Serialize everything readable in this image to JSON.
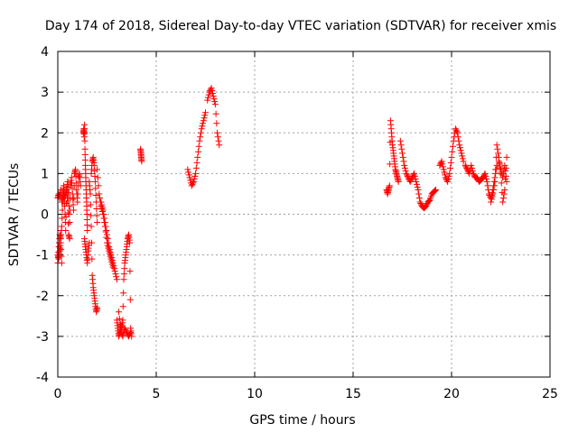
{
  "chart_data": {
    "type": "scatter",
    "title": "Day 174 of 2018, Sidereal Day-to-day VTEC variation (SDTVAR) for receiver xmis",
    "xlabel": "GPS time / hours",
    "ylabel": "SDTVAR / TECUs",
    "xlim": [
      0,
      25
    ],
    "ylim": [
      -4,
      4
    ],
    "x_ticks": [
      0,
      5,
      10,
      15,
      20,
      25
    ],
    "y_ticks": [
      -4,
      -3,
      -2,
      -1,
      0,
      1,
      2,
      3,
      4
    ],
    "grid": true,
    "marker": "plus",
    "color": "#ff0000",
    "series": [
      {
        "name": "SDTVAR",
        "segments": [
          {
            "x": [
              0.0,
              0.05,
              0.1,
              0.15,
              0.2,
              0.25,
              0.3,
              0.35,
              0.4,
              0.45,
              0.5,
              0.55,
              0.6,
              0.65,
              0.7,
              0.75,
              0.8,
              0.85,
              0.9,
              0.95,
              1.0,
              1.05,
              1.1,
              1.15
            ],
            "y": [
              -1.2,
              -0.8,
              -0.5,
              -0.6,
              -0.3,
              0.3,
              0.5,
              0.2,
              -0.4,
              0.6,
              0.8,
              0.4,
              -0.2,
              0.7,
              0.9,
              0.5,
              0.1,
              1.0,
              1.1,
              0.6,
              0.3,
              0.9,
              1.0,
              0.7
            ]
          },
          {
            "x": [
              0.0,
              0.05,
              0.1,
              0.15,
              0.2,
              0.25,
              0.3,
              0.35,
              0.4,
              0.45,
              0.5,
              0.55,
              0.6
            ],
            "y": [
              0.4,
              0.5,
              0.4,
              0.6,
              0.3,
              0.5,
              0.7,
              0.4,
              0.5,
              0.6,
              0.3,
              -0.5,
              -0.6
            ]
          },
          {
            "x": [
              0.0,
              0.05,
              0.1,
              0.15,
              0.2
            ],
            "y": [
              -1.0,
              -1.1,
              -0.9,
              -0.7,
              -1.2
            ]
          },
          {
            "x": [
              1.3,
              1.32,
              1.34,
              1.36,
              1.38,
              1.4,
              1.42,
              1.44,
              1.46,
              1.48,
              1.5
            ],
            "y": [
              2.0,
              2.1,
              1.9,
              2.2,
              1.6,
              1.2,
              0.9,
              0.6,
              0.3,
              0.0,
              -0.4
            ]
          },
          {
            "x": [
              1.35,
              1.4,
              1.45,
              1.5,
              1.55,
              1.6
            ],
            "y": [
              -0.6,
              -0.8,
              -1.0,
              -1.2,
              -0.9,
              -0.7
            ]
          },
          {
            "x": [
              1.6,
              1.65,
              1.7,
              1.75,
              1.8,
              1.85,
              1.9,
              1.95,
              2.0
            ],
            "y": [
              0.8,
              0.5,
              -0.3,
              -1.5,
              -1.8,
              -2.0,
              -2.2,
              -2.4,
              -2.3
            ]
          },
          {
            "x": [
              1.7,
              1.75,
              1.8,
              1.85,
              1.9,
              1.95,
              2.0
            ],
            "y": [
              1.0,
              1.3,
              1.4,
              1.2,
              0.8,
              0.3,
              -0.2
            ]
          },
          {
            "x": [
              2.0,
              2.1,
              2.2,
              2.3,
              2.4,
              2.5,
              2.6,
              2.7,
              2.8
            ],
            "y": [
              1.1,
              0.5,
              0.2,
              0.0,
              -0.3,
              -0.7,
              -0.9,
              -1.1,
              -1.3
            ]
          },
          {
            "x": [
              2.2,
              2.3,
              2.4,
              2.5,
              2.6,
              2.7,
              2.8,
              2.9,
              3.0
            ],
            "y": [
              0.3,
              0.1,
              -0.2,
              -0.5,
              -0.8,
              -1.0,
              -1.2,
              -1.4,
              -1.6
            ]
          },
          {
            "x": [
              3.0,
              3.05,
              3.1,
              3.15,
              3.2,
              3.25,
              3.3,
              3.35,
              3.4,
              3.45,
              3.5,
              3.55,
              3.6,
              3.65,
              3.7,
              3.75
            ],
            "y": [
              -2.6,
              -2.8,
              -3.0,
              -2.9,
              -2.7,
              -2.8,
              -2.6,
              -1.6,
              -1.2,
              -1.0,
              -0.8,
              -0.6,
              -0.5,
              -0.7,
              -2.8,
              -3.0
            ]
          },
          {
            "x": [
              3.1,
              3.2,
              3.3,
              3.4,
              3.5,
              3.6,
              3.7
            ],
            "y": [
              -2.4,
              -2.9,
              -3.0,
              -2.8,
              -2.9,
              -3.0,
              -2.9
            ]
          },
          {
            "x": [
              4.2,
              4.22,
              4.24,
              4.26
            ],
            "y": [
              1.6,
              1.5,
              1.4,
              1.3
            ]
          },
          {
            "x": [
              6.6,
              6.7,
              6.8,
              6.9,
              7.0,
              7.1,
              7.2,
              7.3,
              7.4,
              7.5
            ],
            "y": [
              1.1,
              0.9,
              0.7,
              0.8,
              1.0,
              1.4,
              1.8,
              2.1,
              2.3,
              2.5
            ]
          },
          {
            "x": [
              7.6,
              7.7,
              7.8,
              7.9,
              8.0,
              8.1,
              8.2
            ],
            "y": [
              2.8,
              3.0,
              3.1,
              2.9,
              2.7,
              2.0,
              1.7
            ]
          },
          {
            "x": [
              16.7,
              16.75,
              16.8,
              16.85,
              16.9,
              16.95,
              17.0,
              17.05,
              17.1,
              17.15,
              17.2,
              17.25,
              17.3
            ],
            "y": [
              0.6,
              0.5,
              0.6,
              0.7,
              2.3,
              2.0,
              1.7,
              1.5,
              1.3,
              1.1,
              1.0,
              0.9,
              0.8
            ]
          },
          {
            "x": [
              17.4,
              17.5,
              17.6,
              17.7,
              17.8,
              17.9,
              18.0,
              18.1,
              18.2,
              18.3,
              18.4,
              18.5,
              18.6,
              18.7,
              18.8,
              18.9,
              19.0,
              19.1,
              19.2
            ],
            "y": [
              1.8,
              1.5,
              1.2,
              1.0,
              0.9,
              0.8,
              0.9,
              1.0,
              0.8,
              0.6,
              0.3,
              0.2,
              0.15,
              0.2,
              0.3,
              0.35,
              0.5,
              0.55,
              0.6
            ]
          },
          {
            "x": [
              19.4,
              19.5,
              19.6,
              19.7,
              19.8,
              19.9,
              20.0,
              20.1,
              20.2,
              20.3,
              20.4,
              20.5,
              20.6
            ],
            "y": [
              1.2,
              1.3,
              1.1,
              0.9,
              0.8,
              1.0,
              1.4,
              1.8,
              2.1,
              2.0,
              1.7,
              1.5,
              1.3
            ]
          },
          {
            "x": [
              20.7,
              20.8,
              20.9,
              21.0,
              21.1,
              21.2,
              21.3,
              21.4,
              21.5,
              21.6,
              21.7,
              21.8,
              21.9,
              22.0,
              22.1,
              22.2,
              22.3
            ],
            "y": [
              1.2,
              1.1,
              1.0,
              1.2,
              1.0,
              0.9,
              0.9,
              0.8,
              0.85,
              0.9,
              1.0,
              0.8,
              0.5,
              0.4,
              0.6,
              0.9,
              1.2
            ]
          },
          {
            "x": [
              22.0,
              22.1,
              22.2,
              22.3,
              22.4,
              22.5,
              22.6,
              22.7,
              22.8
            ],
            "y": [
              0.3,
              0.5,
              0.8,
              1.7,
              1.4,
              1.0,
              0.3,
              0.6,
              1.4
            ]
          },
          {
            "x": [
              22.4,
              22.5,
              22.6,
              22.7,
              22.8
            ],
            "y": [
              1.3,
              1.1,
              0.9,
              1.2,
              0.8
            ]
          }
        ]
      }
    ]
  }
}
